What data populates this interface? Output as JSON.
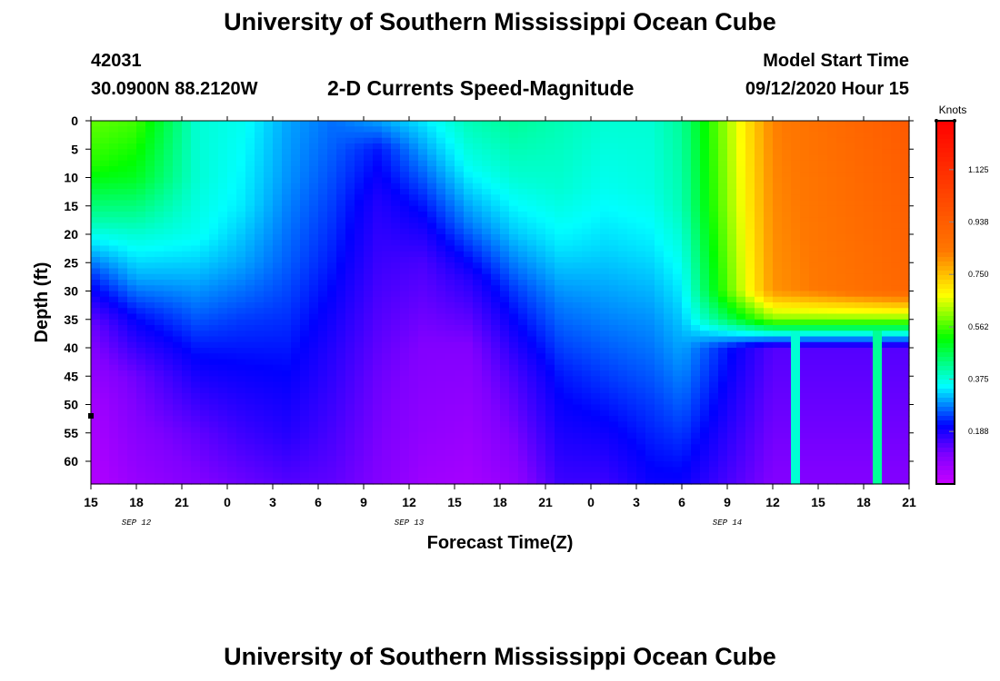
{
  "header": {
    "title_top": "University of Southern Mississippi Ocean Cube",
    "station_id": "42031",
    "location": "30.0900N 88.2120W",
    "chart_title": "2-D Currents Speed-Magnitude",
    "model_label": "Model Start Time",
    "model_time": "09/12/2020 Hour 15",
    "title_bottom": "University of Southern Mississippi Ocean Cube"
  },
  "chart_data": {
    "type": "heatmap",
    "title": "2-D Currents Speed-Magnitude",
    "xlabel": "Forecast Time(Z)",
    "ylabel": "Depth (ft)",
    "colorbar_label": "Knots",
    "x_tick_labels": [
      "15",
      "18",
      "21",
      "0",
      "3",
      "6",
      "9",
      "12",
      "15",
      "18",
      "21",
      "0",
      "3",
      "6",
      "9",
      "12",
      "15",
      "18",
      "21"
    ],
    "date_labels": [
      {
        "text": "SEP 12",
        "at_tick": 1
      },
      {
        "text": "SEP 13",
        "at_tick": 7
      },
      {
        "text": "SEP 14",
        "at_tick": 14
      }
    ],
    "x_range_hours": [
      0,
      54
    ],
    "y_ticks": [
      0,
      5,
      10,
      15,
      20,
      25,
      30,
      35,
      40,
      45,
      50,
      55,
      60
    ],
    "y_range_ft": [
      0,
      64
    ],
    "colorbar_ticks": [
      "0.188",
      "0.375",
      "0.562",
      "0.750",
      "0.938",
      "1.125"
    ],
    "colorbar_tick_values": [
      0.188,
      0.375,
      0.562,
      0.75,
      0.938,
      1.125
    ],
    "colorbar_range": [
      0,
      1.3
    ],
    "marker": {
      "hour": 0,
      "depth": 52
    },
    "speed_profiles": [
      {
        "hour": 0,
        "depths": [
          0,
          8,
          18,
          27,
          36,
          50,
          64
        ],
        "speeds": [
          0.58,
          0.54,
          0.4,
          0.24,
          0.12,
          0.05,
          0.03
        ]
      },
      {
        "hour": 3,
        "depths": [
          0,
          10,
          20,
          28,
          34,
          45,
          64
        ],
        "speeds": [
          0.56,
          0.5,
          0.38,
          0.3,
          0.22,
          0.12,
          0.07
        ]
      },
      {
        "hour": 7,
        "depths": [
          0,
          10,
          20,
          30,
          40,
          55,
          64
        ],
        "speeds": [
          0.38,
          0.38,
          0.36,
          0.29,
          0.22,
          0.13,
          0.1
        ]
      },
      {
        "hour": 10,
        "depths": [
          0,
          15,
          25,
          35,
          45,
          55,
          64
        ],
        "speeds": [
          0.36,
          0.34,
          0.3,
          0.24,
          0.2,
          0.16,
          0.12
        ]
      },
      {
        "hour": 13,
        "depths": [
          0,
          10,
          25,
          40,
          55,
          64
        ],
        "speeds": [
          0.3,
          0.29,
          0.26,
          0.22,
          0.18,
          0.14
        ]
      },
      {
        "hour": 16,
        "depths": [
          0,
          10,
          25,
          40,
          55,
          64
        ],
        "speeds": [
          0.27,
          0.25,
          0.22,
          0.18,
          0.15,
          0.13
        ]
      },
      {
        "hour": 19,
        "depths": [
          0,
          5,
          15,
          30,
          45,
          64
        ],
        "speeds": [
          0.3,
          0.22,
          0.18,
          0.15,
          0.12,
          0.1
        ]
      },
      {
        "hour": 22,
        "depths": [
          0,
          5,
          15,
          25,
          40,
          55,
          64
        ],
        "speeds": [
          0.34,
          0.3,
          0.22,
          0.15,
          0.1,
          0.08,
          0.06
        ]
      },
      {
        "hour": 25,
        "depths": [
          0,
          8,
          18,
          28,
          40,
          64
        ],
        "speeds": [
          0.4,
          0.36,
          0.28,
          0.18,
          0.1,
          0.05
        ]
      },
      {
        "hour": 28,
        "depths": [
          0,
          10,
          20,
          30,
          45,
          64
        ],
        "speeds": [
          0.42,
          0.38,
          0.32,
          0.24,
          0.15,
          0.08
        ]
      },
      {
        "hour": 31,
        "depths": [
          0,
          12,
          22,
          32,
          45,
          64
        ],
        "speeds": [
          0.4,
          0.38,
          0.34,
          0.28,
          0.22,
          0.16
        ]
      },
      {
        "hour": 34,
        "depths": [
          0,
          12,
          22,
          35,
          50,
          64
        ],
        "speeds": [
          0.38,
          0.36,
          0.33,
          0.28,
          0.22,
          0.16
        ]
      },
      {
        "hour": 37,
        "depths": [
          0,
          12,
          22,
          35,
          50,
          64
        ],
        "speeds": [
          0.38,
          0.37,
          0.34,
          0.29,
          0.24,
          0.2
        ]
      },
      {
        "hour": 39,
        "depths": [
          0,
          15,
          25,
          35,
          50,
          64
        ],
        "speeds": [
          0.42,
          0.4,
          0.36,
          0.32,
          0.26,
          0.2
        ]
      },
      {
        "hour": 45,
        "depths": [
          0,
          30,
          35,
          40,
          64
        ],
        "speeds": [
          0.82,
          0.8,
          0.6,
          0.14,
          0.1
        ]
      },
      {
        "hour": 54,
        "depths": [
          0,
          30,
          35,
          40,
          64
        ],
        "speeds": [
          0.95,
          0.9,
          0.6,
          0.14,
          0.1
        ]
      }
    ],
    "jet_columns": [
      {
        "hour": 46.6,
        "speed": 0.38
      },
      {
        "hour": 52.0,
        "speed": 0.42
      }
    ]
  }
}
